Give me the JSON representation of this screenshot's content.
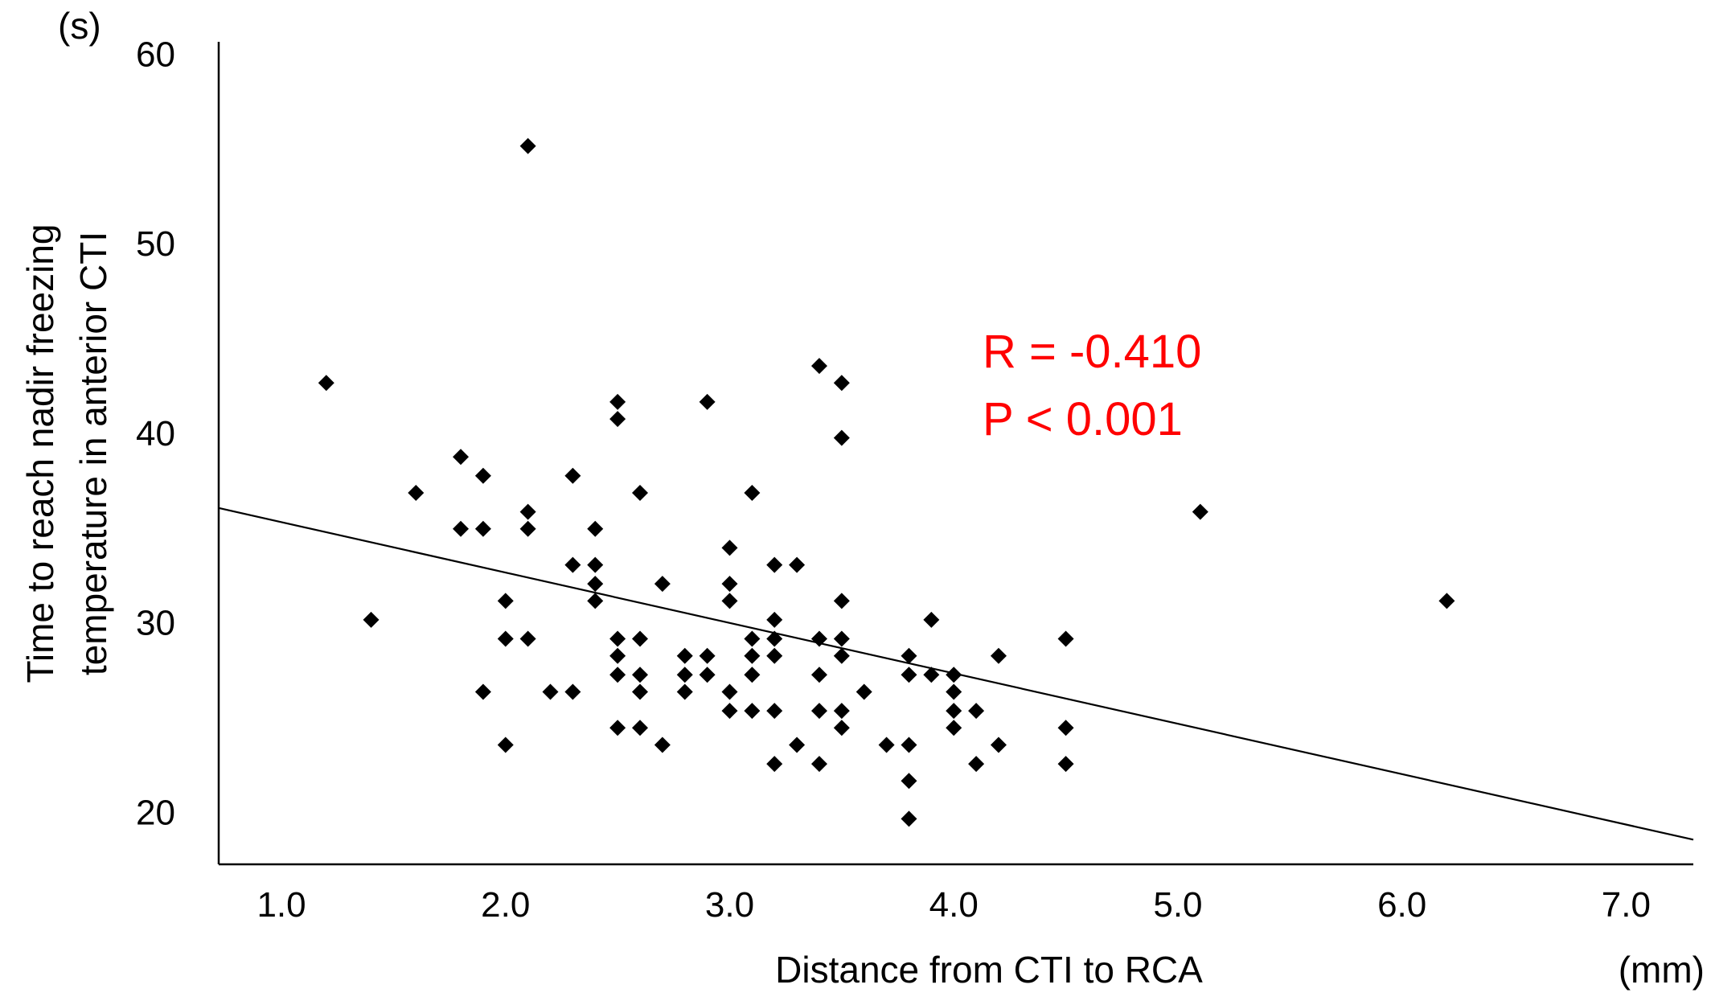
{
  "chart_data": {
    "type": "scatter",
    "xlabel": "Distance from CTI to RCA",
    "x_unit": "(mm)",
    "ylabel": [
      "Time to reach nadir freezing",
      "temperature in anterior CTI"
    ],
    "y_unit": "(s)",
    "xlim": [
      0.72,
      7.3
    ],
    "ylim": [
      17.4,
      60.8
    ],
    "x_ticks": [
      "1.0",
      "2.0",
      "3.0",
      "4.0",
      "5.0",
      "6.0",
      "7.0"
    ],
    "y_ticks": [
      "20",
      "30",
      "40",
      "50",
      "60"
    ],
    "grid": false,
    "marker_color": "#000000",
    "annotation": {
      "lines": [
        "R = -0.410",
        "P < 0.001"
      ],
      "color": "#ff0000"
    },
    "trendline": {
      "x1": 0.72,
      "y1": 36.2,
      "x2": 7.3,
      "y2": 18.7
    },
    "points": [
      [
        1.2,
        42.8
      ],
      [
        1.4,
        30.3
      ],
      [
        1.6,
        37.0
      ],
      [
        1.8,
        38.9
      ],
      [
        1.8,
        35.1
      ],
      [
        1.9,
        37.9
      ],
      [
        1.9,
        35.1
      ],
      [
        1.9,
        26.5
      ],
      [
        2.0,
        31.3
      ],
      [
        2.0,
        29.3
      ],
      [
        2.0,
        23.7
      ],
      [
        2.1,
        55.3
      ],
      [
        2.1,
        36.0
      ],
      [
        2.1,
        35.1
      ],
      [
        2.1,
        29.3
      ],
      [
        2.2,
        26.5
      ],
      [
        2.3,
        37.9
      ],
      [
        2.3,
        33.2
      ],
      [
        2.3,
        26.5
      ],
      [
        2.4,
        35.1
      ],
      [
        2.4,
        33.2
      ],
      [
        2.4,
        32.2
      ],
      [
        2.4,
        31.3
      ],
      [
        2.5,
        41.8
      ],
      [
        2.5,
        40.9
      ],
      [
        2.5,
        29.3
      ],
      [
        2.5,
        28.4
      ],
      [
        2.5,
        27.4
      ],
      [
        2.5,
        24.6
      ],
      [
        2.6,
        37.0
      ],
      [
        2.6,
        29.3
      ],
      [
        2.6,
        27.4
      ],
      [
        2.6,
        26.5
      ],
      [
        2.6,
        24.6
      ],
      [
        2.7,
        32.2
      ],
      [
        2.7,
        23.7
      ],
      [
        2.8,
        28.4
      ],
      [
        2.8,
        27.4
      ],
      [
        2.8,
        26.5
      ],
      [
        2.9,
        41.8
      ],
      [
        2.9,
        28.4
      ],
      [
        2.9,
        27.4
      ],
      [
        3.0,
        34.1
      ],
      [
        3.0,
        32.2
      ],
      [
        3.0,
        31.3
      ],
      [
        3.0,
        26.5
      ],
      [
        3.0,
        25.5
      ],
      [
        3.1,
        37.0
      ],
      [
        3.1,
        29.3
      ],
      [
        3.1,
        28.4
      ],
      [
        3.1,
        27.4
      ],
      [
        3.1,
        25.5
      ],
      [
        3.2,
        33.2
      ],
      [
        3.2,
        30.3
      ],
      [
        3.2,
        29.3
      ],
      [
        3.2,
        28.4
      ],
      [
        3.2,
        25.5
      ],
      [
        3.2,
        22.7
      ],
      [
        3.3,
        33.2
      ],
      [
        3.3,
        23.7
      ],
      [
        3.4,
        43.7
      ],
      [
        3.4,
        29.3
      ],
      [
        3.4,
        27.4
      ],
      [
        3.4,
        25.5
      ],
      [
        3.4,
        22.7
      ],
      [
        3.5,
        42.8
      ],
      [
        3.5,
        39.9
      ],
      [
        3.5,
        31.3
      ],
      [
        3.5,
        29.3
      ],
      [
        3.5,
        28.4
      ],
      [
        3.5,
        25.5
      ],
      [
        3.5,
        24.6
      ],
      [
        3.6,
        26.5
      ],
      [
        3.7,
        23.7
      ],
      [
        3.8,
        28.4
      ],
      [
        3.8,
        27.4
      ],
      [
        3.8,
        23.7
      ],
      [
        3.8,
        21.8
      ],
      [
        3.8,
        19.8
      ],
      [
        3.9,
        30.3
      ],
      [
        3.9,
        27.4
      ],
      [
        4.0,
        27.4
      ],
      [
        4.0,
        26.5
      ],
      [
        4.0,
        25.5
      ],
      [
        4.0,
        24.6
      ],
      [
        4.1,
        25.5
      ],
      [
        4.1,
        22.7
      ],
      [
        4.2,
        28.4
      ],
      [
        4.2,
        23.7
      ],
      [
        4.5,
        29.3
      ],
      [
        4.5,
        24.6
      ],
      [
        4.5,
        22.7
      ],
      [
        5.1,
        36.0
      ],
      [
        6.2,
        31.3
      ]
    ]
  }
}
